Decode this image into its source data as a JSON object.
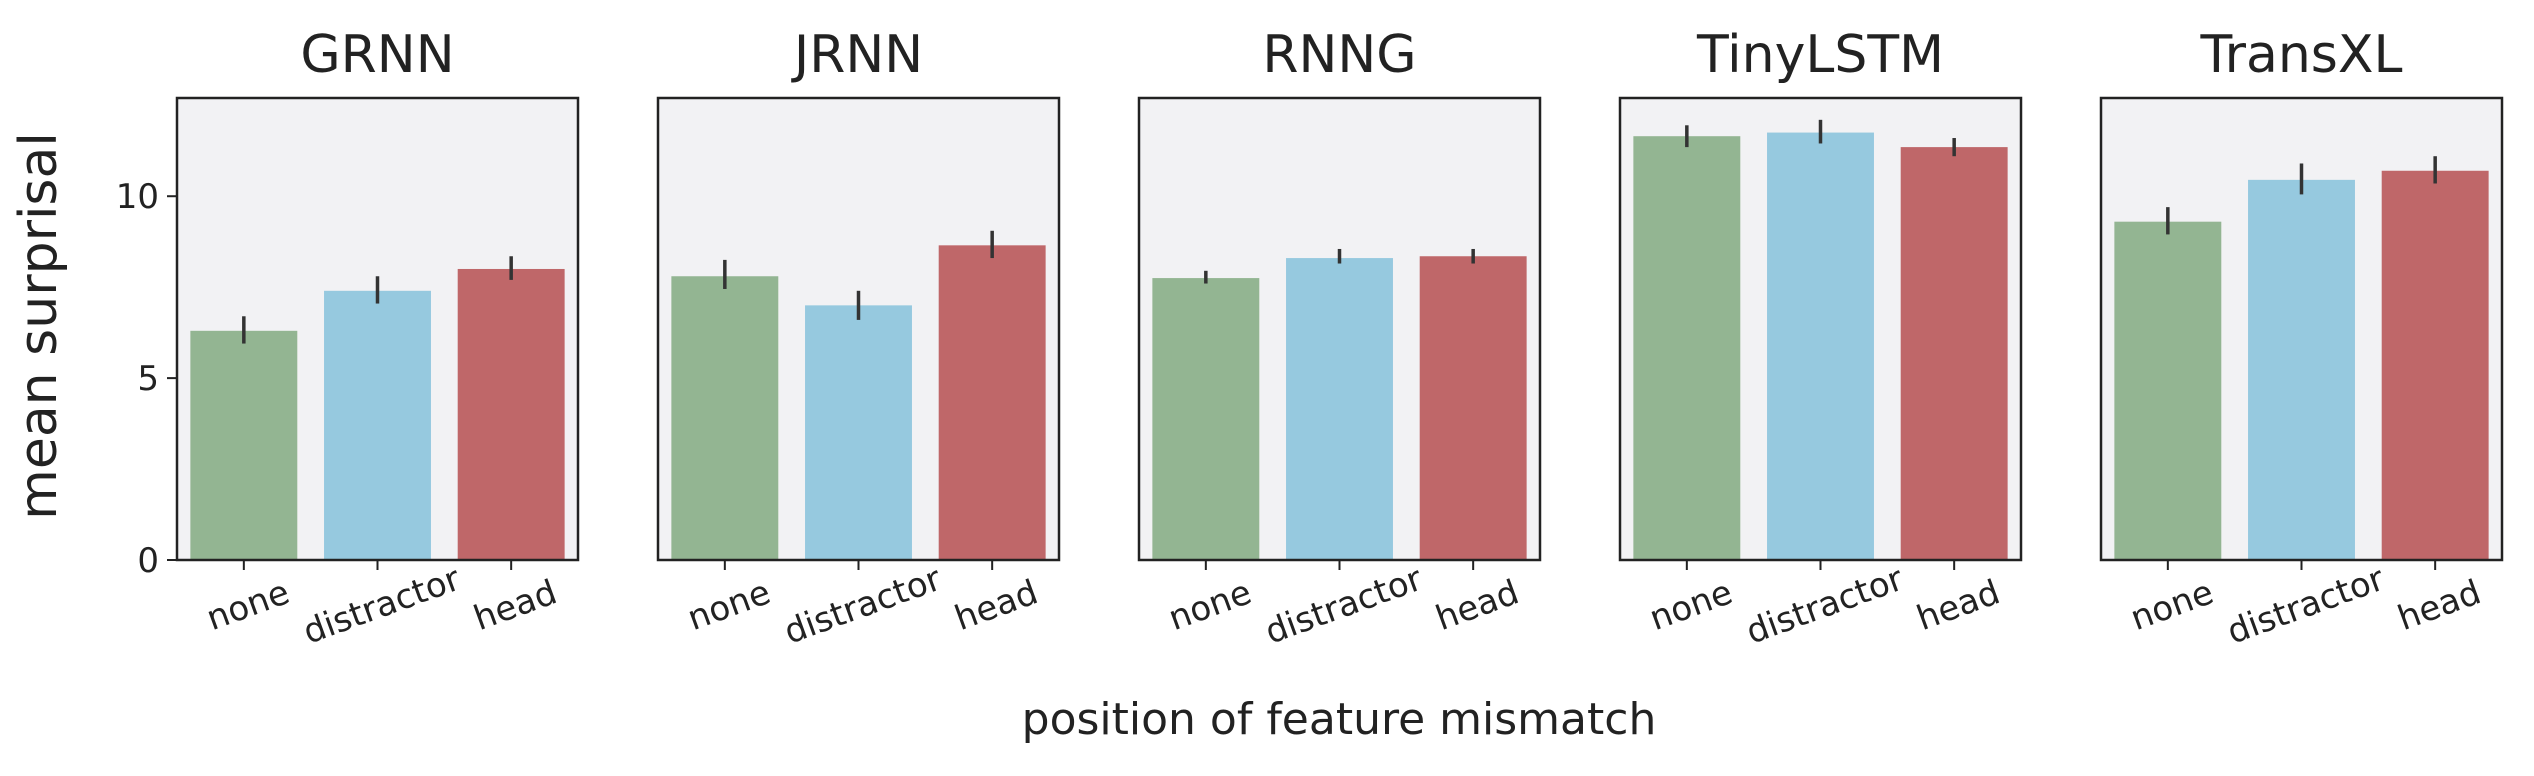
{
  "chart_data": {
    "type": "bar",
    "layout": "faceted",
    "xlabel": "position of feature mismatch",
    "ylabel": "mean surprisal",
    "ylim": [
      0,
      12.7
    ],
    "yticks": [
      0,
      5,
      10
    ],
    "sharey": true,
    "grid": false,
    "categories": [
      "none",
      "distractor",
      "head"
    ],
    "colors": [
      "#93b592",
      "#96c9df",
      "#bf6769"
    ],
    "panel_background": "#f2f2f4",
    "errorbar_color": "#333333",
    "panels": [
      {
        "title": "GRNN",
        "values": [
          6.3,
          7.4,
          8.0
        ],
        "error_low": [
          5.95,
          7.05,
          7.7
        ],
        "error_high": [
          6.7,
          7.8,
          8.35
        ]
      },
      {
        "title": "JRNN",
        "values": [
          7.8,
          7.0,
          8.65
        ],
        "error_low": [
          7.45,
          6.6,
          8.3
        ],
        "error_high": [
          8.25,
          7.4,
          9.05
        ]
      },
      {
        "title": "RNNG",
        "values": [
          7.75,
          8.3,
          8.35
        ],
        "error_low": [
          7.6,
          8.15,
          8.15
        ],
        "error_high": [
          7.95,
          8.55,
          8.55
        ]
      },
      {
        "title": "TinyLSTM",
        "values": [
          11.65,
          11.75,
          11.35
        ],
        "error_low": [
          11.35,
          11.45,
          11.1
        ],
        "error_high": [
          11.95,
          12.1,
          11.6
        ]
      },
      {
        "title": "TransXL",
        "values": [
          9.3,
          10.45,
          10.7
        ],
        "error_low": [
          8.95,
          10.05,
          10.35
        ],
        "error_high": [
          9.7,
          10.9,
          11.1
        ]
      }
    ]
  }
}
